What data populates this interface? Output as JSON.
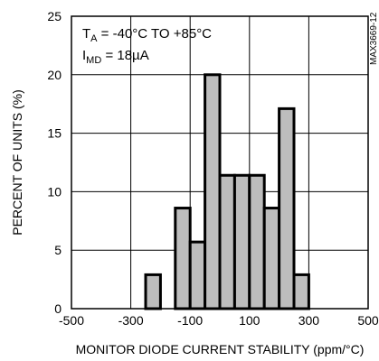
{
  "chart_data": {
    "type": "bar",
    "title": "",
    "xlabel": "MONITOR DIODE CURRENT STABILITY (ppm/°C)",
    "ylabel": "PERCENT OF UNITS (%)",
    "xlim": [
      -500,
      500
    ],
    "ylim": [
      0,
      25
    ],
    "x_ticks": [
      -500,
      -300,
      -100,
      100,
      300,
      500
    ],
    "x_tick_labels": [
      "-500",
      "-300",
      "-100",
      "100",
      "300",
      "500"
    ],
    "y_ticks": [
      0,
      5,
      10,
      15,
      20,
      25
    ],
    "y_tick_labels": [
      "0",
      "5",
      "10",
      "15",
      "20",
      "25"
    ],
    "grid": true,
    "bin_width": 50,
    "bins": [
      {
        "x0": -250,
        "x1": -200,
        "value": 2.9
      },
      {
        "x0": -150,
        "x1": -100,
        "value": 8.6
      },
      {
        "x0": -100,
        "x1": -50,
        "value": 5.7
      },
      {
        "x0": -50,
        "x1": 0,
        "value": 20.0
      },
      {
        "x0": 0,
        "x1": 50,
        "value": 11.4
      },
      {
        "x0": 50,
        "x1": 100,
        "value": 11.4
      },
      {
        "x0": 100,
        "x1": 150,
        "value": 11.4
      },
      {
        "x0": 150,
        "x1": 200,
        "value": 8.6
      },
      {
        "x0": 200,
        "x1": 250,
        "value": 17.1
      },
      {
        "x0": 250,
        "x1": 300,
        "value": 2.9
      }
    ],
    "annotations": {
      "line1_main": "T",
      "line1_sub": "A",
      "line1_rest": " = -40°C TO +85°C",
      "line2_main": "I",
      "line2_sub": "MD",
      "line2_rest": " = 18µA"
    },
    "figure_code": "MAX3669-12",
    "bar_fill": "#bdbdbd"
  }
}
